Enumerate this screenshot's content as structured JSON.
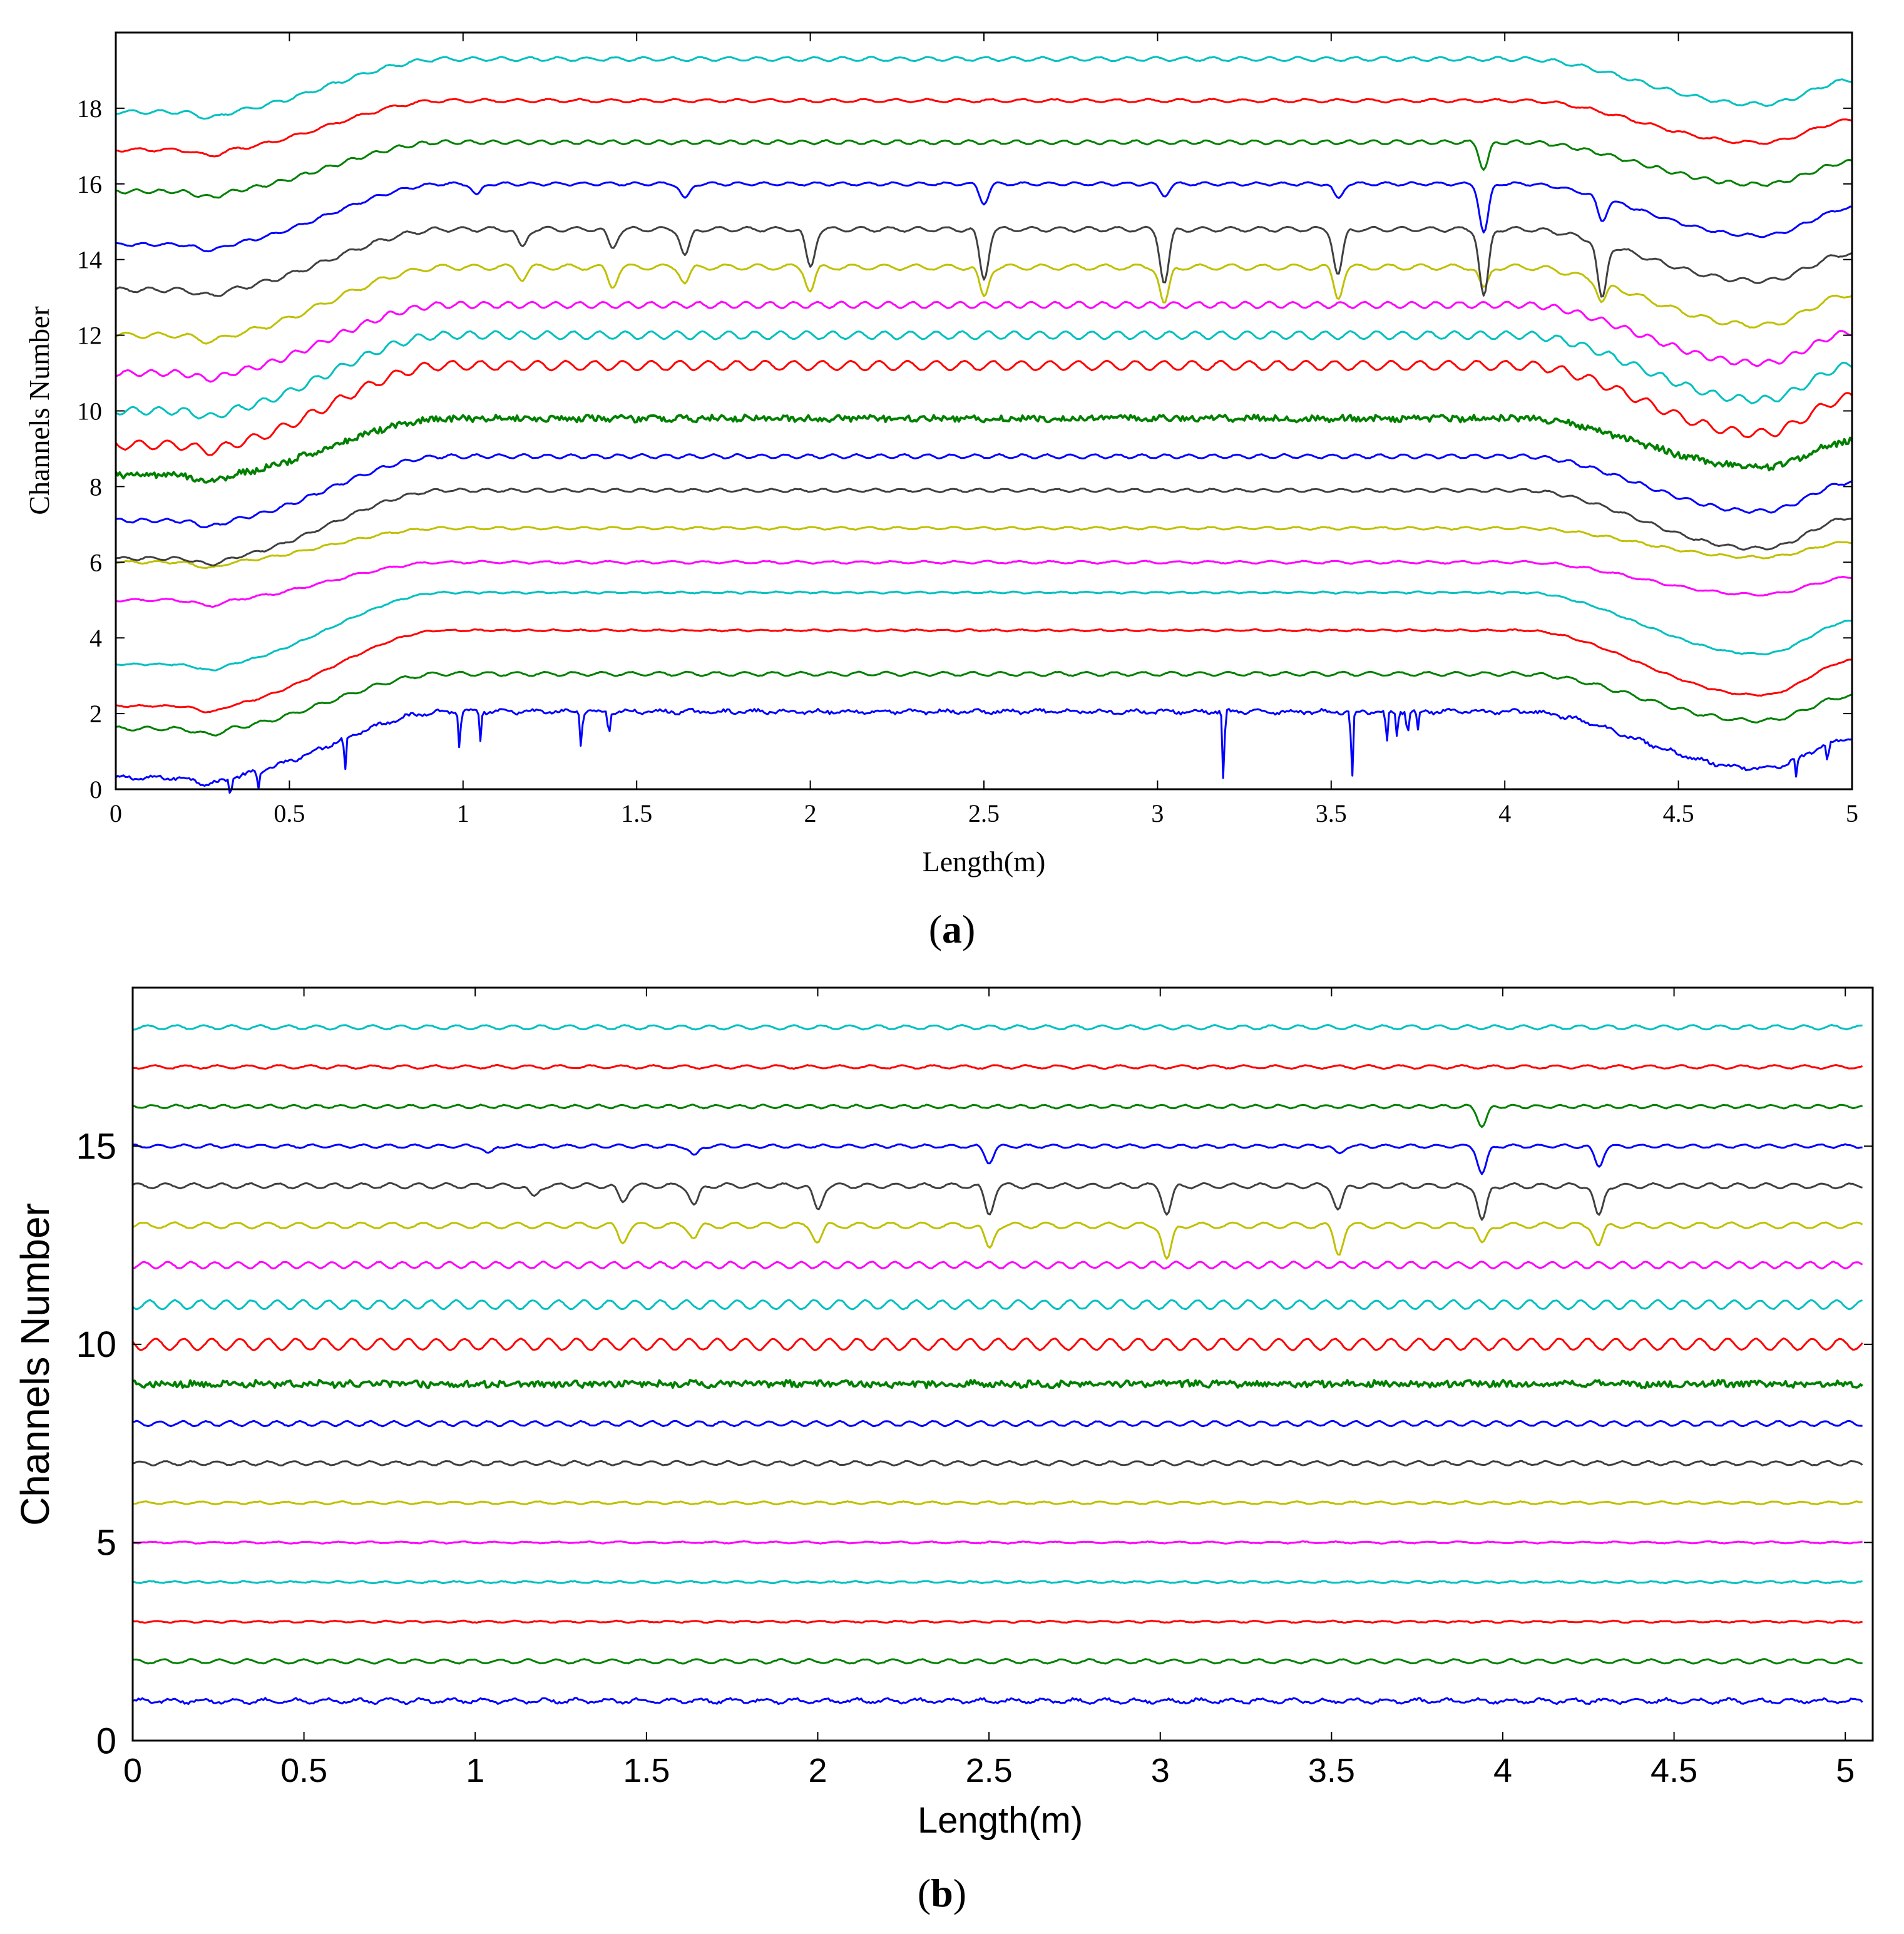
{
  "chart_data": [
    {
      "type": "line",
      "panel": "(a)",
      "caption_letter": "a",
      "xlabel": "Length(m)",
      "ylabel": "Channels Number",
      "xlim": [
        0,
        5
      ],
      "ylim": [
        0,
        20
      ],
      "xticks": [
        0,
        0.5,
        1,
        1.5,
        2,
        2.5,
        3,
        3.5,
        4,
        4.5,
        5
      ],
      "xtick_labels": [
        "0",
        "0.5",
        "1",
        "1.5",
        "2",
        "2.5",
        "3",
        "3.5",
        "4",
        "4.5",
        "5"
      ],
      "yticks": [
        0,
        2,
        4,
        6,
        8,
        10,
        12,
        14,
        16,
        18
      ],
      "ytick_labels": [
        "0",
        "2",
        "4",
        "6",
        "8",
        "10",
        "12",
        "14",
        "16",
        "18"
      ],
      "series": [
        {
          "name": "Channel 1",
          "color": "#0000ff",
          "baseline": 0.3,
          "plateau": 2.05,
          "ripple": 0.04,
          "noise": 0.04,
          "spikes": [
            {
              "x": 0.33,
              "depth": 0.5
            },
            {
              "x": 0.41,
              "depth": 0.5
            },
            {
              "x": 0.66,
              "depth": 0.9
            },
            {
              "x": 0.99,
              "depth": 1.0
            },
            {
              "x": 1.05,
              "depth": 0.8
            },
            {
              "x": 1.34,
              "depth": 0.9
            },
            {
              "x": 1.42,
              "depth": 0.7
            },
            {
              "x": 3.19,
              "depth": 1.9
            },
            {
              "x": 3.56,
              "depth": 1.9
            },
            {
              "x": 3.66,
              "depth": 0.9
            },
            {
              "x": 3.69,
              "depth": 0.7
            },
            {
              "x": 3.72,
              "depth": 0.6
            },
            {
              "x": 3.75,
              "depth": 0.5
            },
            {
              "x": 4.84,
              "depth": 0.5
            },
            {
              "x": 4.93,
              "depth": 0.6
            }
          ]
        },
        {
          "name": "Channel 2",
          "color": "#008000",
          "baseline": 1.6,
          "plateau": 3.05,
          "ripple": 0.05,
          "noise": 0.01,
          "spikes": []
        },
        {
          "name": "Channel 3",
          "color": "#ff0000",
          "baseline": 2.2,
          "plateau": 4.2,
          "ripple": 0.02,
          "noise": 0.01,
          "spikes": []
        },
        {
          "name": "Channel 4",
          "color": "#00c0c0",
          "baseline": 3.3,
          "plateau": 5.2,
          "ripple": 0.02,
          "noise": 0.01,
          "spikes": []
        },
        {
          "name": "Channel 5",
          "color": "#ff00ff",
          "baseline": 5.0,
          "plateau": 6.0,
          "ripple": 0.03,
          "noise": 0.01,
          "spikes": []
        },
        {
          "name": "Channel 6",
          "color": "#c0c000",
          "baseline": 6.0,
          "plateau": 6.9,
          "ripple": 0.03,
          "noise": 0.01,
          "spikes": []
        },
        {
          "name": "Channel 7",
          "color": "#404040",
          "baseline": 6.1,
          "plateau": 7.9,
          "ripple": 0.04,
          "noise": 0.01,
          "spikes": []
        },
        {
          "name": "Channel 8",
          "color": "#0000ff",
          "baseline": 7.1,
          "plateau": 8.8,
          "ripple": 0.05,
          "noise": 0.01,
          "spikes": []
        },
        {
          "name": "Channel 9",
          "color": "#008000",
          "baseline": 8.3,
          "plateau": 9.8,
          "ripple": 0.02,
          "noise": 0.08,
          "spikes": []
        },
        {
          "name": "Channel 10",
          "color": "#ff0000",
          "baseline": 9.1,
          "plateau": 11.2,
          "ripple": 0.12,
          "noise": 0.01,
          "spikes": []
        },
        {
          "name": "Channel 11",
          "color": "#00c0c0",
          "baseline": 10.0,
          "plateau": 12.0,
          "ripple": 0.1,
          "noise": 0.01,
          "spikes": []
        },
        {
          "name": "Channel 12",
          "color": "#ff00ff",
          "baseline": 11.0,
          "plateau": 12.8,
          "ripple": 0.08,
          "noise": 0.01,
          "spikes": []
        },
        {
          "name": "Channel 13",
          "color": "#c0c000",
          "baseline": 12.0,
          "plateau": 13.8,
          "ripple": 0.07,
          "noise": 0.01,
          "spikes": [
            {
              "x": 1.17,
              "depth": 0.3
            },
            {
              "x": 1.43,
              "depth": 0.5
            },
            {
              "x": 1.64,
              "depth": 0.4
            },
            {
              "x": 2.0,
              "depth": 0.6
            },
            {
              "x": 2.5,
              "depth": 0.8
            },
            {
              "x": 3.02,
              "depth": 1.0
            },
            {
              "x": 3.52,
              "depth": 0.8
            },
            {
              "x": 3.94,
              "depth": 0.6
            },
            {
              "x": 4.28,
              "depth": 0.5
            }
          ]
        },
        {
          "name": "Channel 14",
          "color": "#404040",
          "baseline": 13.2,
          "plateau": 14.8,
          "ripple": 0.06,
          "noise": 0.01,
          "spikes": [
            {
              "x": 1.17,
              "depth": 0.5
            },
            {
              "x": 1.43,
              "depth": 0.5
            },
            {
              "x": 1.64,
              "depth": 0.7
            },
            {
              "x": 2.0,
              "depth": 1.0
            },
            {
              "x": 2.5,
              "depth": 1.3
            },
            {
              "x": 3.02,
              "depth": 1.4
            },
            {
              "x": 3.52,
              "depth": 1.2
            },
            {
              "x": 3.94,
              "depth": 1.8
            },
            {
              "x": 4.28,
              "depth": 1.5
            }
          ]
        },
        {
          "name": "Channel 15",
          "color": "#0000ff",
          "baseline": 14.4,
          "plateau": 16.0,
          "ripple": 0.04,
          "noise": 0.01,
          "spikes": [
            {
              "x": 1.04,
              "depth": 0.3
            },
            {
              "x": 1.64,
              "depth": 0.4
            },
            {
              "x": 2.5,
              "depth": 0.5
            },
            {
              "x": 3.02,
              "depth": 0.3
            },
            {
              "x": 3.52,
              "depth": 0.4
            },
            {
              "x": 3.94,
              "depth": 1.3
            },
            {
              "x": 4.28,
              "depth": 0.6
            }
          ]
        },
        {
          "name": "Channel 16",
          "color": "#008000",
          "baseline": 15.8,
          "plateau": 17.1,
          "ripple": 0.05,
          "noise": 0.01,
          "spikes": [
            {
              "x": 3.94,
              "depth": 0.7
            }
          ]
        },
        {
          "name": "Channel 17",
          "color": "#ff0000",
          "baseline": 16.9,
          "plateau": 18.2,
          "ripple": 0.04,
          "noise": 0.01,
          "spikes": []
        },
        {
          "name": "Channel 18",
          "color": "#00c0c0",
          "baseline": 17.9,
          "plateau": 19.3,
          "ripple": 0.05,
          "noise": 0.01,
          "spikes": []
        }
      ]
    },
    {
      "type": "line",
      "panel": "(b)",
      "caption_letter": "b",
      "xlabel": "Length(m)",
      "ylabel": "Channels Number",
      "xlim": [
        0,
        5.08
      ],
      "ylim": [
        0,
        19
      ],
      "xticks": [
        0,
        0.5,
        1,
        1.5,
        2,
        2.5,
        3,
        3.5,
        4,
        4.5,
        5
      ],
      "xtick_labels": [
        "0",
        "0.5",
        "1",
        "1.5",
        "2",
        "2.5",
        "3",
        "3.5",
        "4",
        "4.5",
        "5"
      ],
      "yticks": [
        0,
        5,
        10,
        15
      ],
      "ytick_labels": [
        "0",
        "5",
        "10",
        "15"
      ],
      "series": [
        {
          "name": "Channel 1",
          "color": "#0000ff",
          "baseline": 1,
          "ripple": 0.05,
          "noise": 0.03,
          "spikes": []
        },
        {
          "name": "Channel 2",
          "color": "#008000",
          "baseline": 2,
          "ripple": 0.05,
          "noise": 0.01,
          "spikes": []
        },
        {
          "name": "Channel 3",
          "color": "#ff0000",
          "baseline": 3,
          "ripple": 0.02,
          "noise": 0.01,
          "spikes": []
        },
        {
          "name": "Channel 4",
          "color": "#00c0c0",
          "baseline": 4,
          "ripple": 0.02,
          "noise": 0.01,
          "spikes": []
        },
        {
          "name": "Channel 5",
          "color": "#ff00ff",
          "baseline": 5,
          "ripple": 0.02,
          "noise": 0.01,
          "spikes": []
        },
        {
          "name": "Channel 6",
          "color": "#c0c000",
          "baseline": 6,
          "ripple": 0.03,
          "noise": 0.01,
          "spikes": []
        },
        {
          "name": "Channel 7",
          "color": "#404040",
          "baseline": 7,
          "ripple": 0.05,
          "noise": 0.01,
          "spikes": []
        },
        {
          "name": "Channel 8",
          "color": "#0000ff",
          "baseline": 8,
          "ripple": 0.06,
          "noise": 0.01,
          "spikes": []
        },
        {
          "name": "Channel 9",
          "color": "#008000",
          "baseline": 9,
          "ripple": 0.02,
          "noise": 0.08,
          "spikes": []
        },
        {
          "name": "Channel 10",
          "color": "#ff0000",
          "baseline": 10,
          "ripple": 0.14,
          "noise": 0.01,
          "spikes": []
        },
        {
          "name": "Channel 11",
          "color": "#00c0c0",
          "baseline": 11,
          "ripple": 0.11,
          "noise": 0.01,
          "spikes": []
        },
        {
          "name": "Channel 12",
          "color": "#ff00ff",
          "baseline": 12,
          "ripple": 0.08,
          "noise": 0.01,
          "spikes": []
        },
        {
          "name": "Channel 13",
          "color": "#c0c000",
          "baseline": 13,
          "ripple": 0.07,
          "noise": 0.01,
          "spikes": [
            {
              "x": 1.43,
              "depth": 0.4
            },
            {
              "x": 1.64,
              "depth": 0.3
            },
            {
              "x": 2.0,
              "depth": 0.4
            },
            {
              "x": 2.5,
              "depth": 0.6
            },
            {
              "x": 3.02,
              "depth": 0.9
            },
            {
              "x": 3.52,
              "depth": 0.7
            },
            {
              "x": 3.94,
              "depth": 0.5
            },
            {
              "x": 4.28,
              "depth": 0.5
            }
          ]
        },
        {
          "name": "Channel 14",
          "color": "#404040",
          "baseline": 14,
          "ripple": 0.06,
          "noise": 0.01,
          "spikes": [
            {
              "x": 1.17,
              "depth": 0.3
            },
            {
              "x": 1.43,
              "depth": 0.4
            },
            {
              "x": 1.64,
              "depth": 0.5
            },
            {
              "x": 2.0,
              "depth": 0.6
            },
            {
              "x": 2.5,
              "depth": 0.7
            },
            {
              "x": 3.02,
              "depth": 0.7
            },
            {
              "x": 3.52,
              "depth": 0.6
            },
            {
              "x": 3.94,
              "depth": 0.9
            },
            {
              "x": 4.28,
              "depth": 0.8
            }
          ]
        },
        {
          "name": "Channel 15",
          "color": "#0000ff",
          "baseline": 15,
          "ripple": 0.04,
          "noise": 0.01,
          "spikes": [
            {
              "x": 1.04,
              "depth": 0.2
            },
            {
              "x": 1.64,
              "depth": 0.25
            },
            {
              "x": 2.5,
              "depth": 0.4
            },
            {
              "x": 3.52,
              "depth": 0.2
            },
            {
              "x": 3.94,
              "depth": 0.7
            },
            {
              "x": 4.28,
              "depth": 0.5
            }
          ]
        },
        {
          "name": "Channel 16",
          "color": "#008000",
          "baseline": 16,
          "ripple": 0.04,
          "noise": 0.01,
          "spikes": [
            {
              "x": 3.94,
              "depth": 0.5
            }
          ]
        },
        {
          "name": "Channel 17",
          "color": "#ff0000",
          "baseline": 17,
          "ripple": 0.04,
          "noise": 0.01,
          "spikes": []
        },
        {
          "name": "Channel 18",
          "color": "#00c0c0",
          "baseline": 18,
          "ripple": 0.05,
          "noise": 0.01,
          "spikes": []
        }
      ]
    }
  ]
}
